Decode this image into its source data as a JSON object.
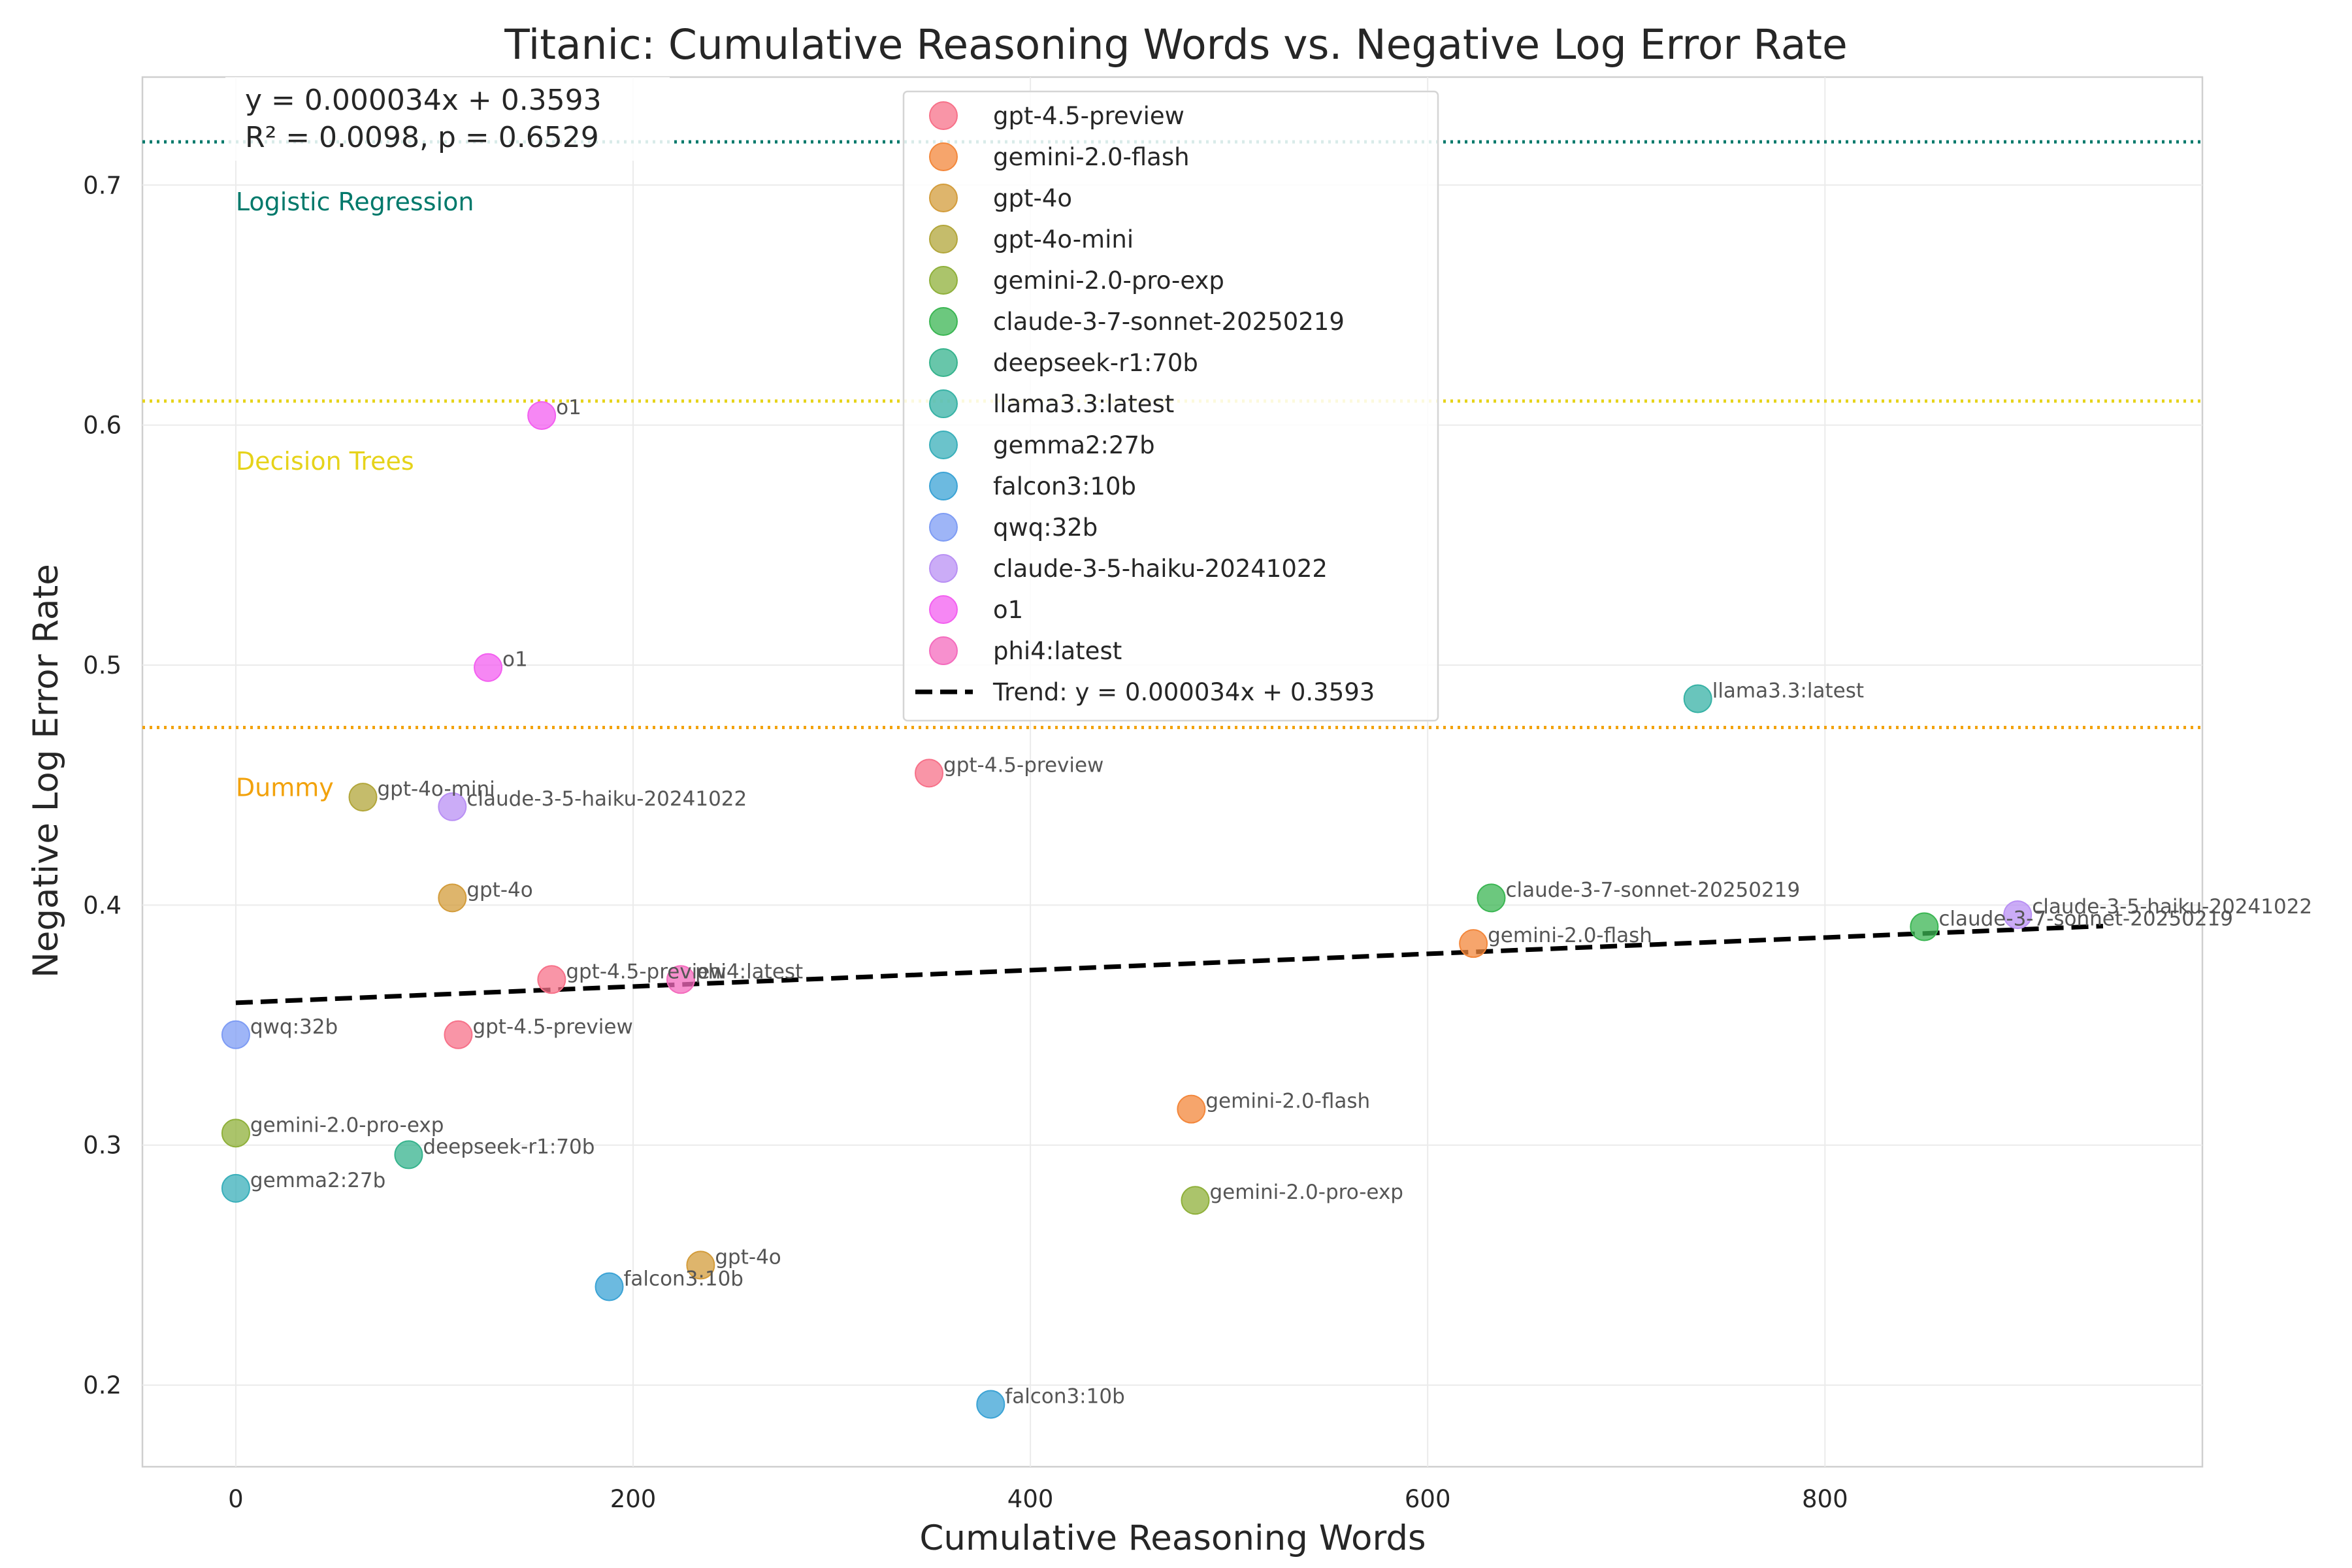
{
  "chart_data": {
    "type": "scatter",
    "title": "Titanic: Cumulative Reasoning Words vs. Negative Log Error Rate",
    "xlabel": "Cumulative Reasoning Words",
    "ylabel": "Negative Log Error Rate",
    "xlim": [
      -47,
      990
    ],
    "ylim": [
      0.166,
      0.745
    ],
    "xticks": [
      0,
      200,
      400,
      600,
      800
    ],
    "yticks": [
      0.2,
      0.3,
      0.4,
      0.5,
      0.6,
      0.7
    ],
    "grid": true,
    "legend_position": "upper-center",
    "series": [
      {
        "name": "gpt-4.5-preview",
        "color": "#f77189",
        "points": [
          {
            "x": 349,
            "y": 0.455,
            "label": "gpt-4.5-preview"
          },
          {
            "x": 159,
            "y": 0.369,
            "label": "gpt-4.5-preview"
          },
          {
            "x": 112,
            "y": 0.346,
            "label": "gpt-4.5-preview"
          }
        ]
      },
      {
        "name": "gemini-2.0-flash",
        "color": "#f3873b",
        "points": [
          {
            "x": 623,
            "y": 0.384,
            "label": "gemini-2.0-flash"
          },
          {
            "x": 481,
            "y": 0.315,
            "label": "gemini-2.0-flash"
          }
        ]
      },
      {
        "name": "gpt-4o",
        "color": "#d39c3b",
        "points": [
          {
            "x": 109,
            "y": 0.403,
            "label": "gpt-4o"
          },
          {
            "x": 234,
            "y": 0.25,
            "label": "gpt-4o"
          }
        ]
      },
      {
        "name": "gpt-4o-mini",
        "color": "#b2a63a",
        "points": [
          {
            "x": 64,
            "y": 0.445,
            "label": "gpt-4o-mini"
          }
        ]
      },
      {
        "name": "gemini-2.0-pro-exp",
        "color": "#8fb03a",
        "points": [
          {
            "x": 0,
            "y": 0.305,
            "label": "gemini-2.0-pro-exp"
          },
          {
            "x": 483,
            "y": 0.277,
            "label": "gemini-2.0-pro-exp"
          }
        ]
      },
      {
        "name": "claude-3-7-sonnet-20250219",
        "color": "#3bb653",
        "points": [
          {
            "x": 632,
            "y": 0.403,
            "label": "claude-3-7-sonnet-20250219"
          },
          {
            "x": 850,
            "y": 0.391,
            "label": "claude-3-7-sonnet-20250219"
          }
        ]
      },
      {
        "name": "deepseek-r1:70b",
        "color": "#36b38d",
        "points": [
          {
            "x": 87,
            "y": 0.296,
            "label": "deepseek-r1:70b"
          }
        ]
      },
      {
        "name": "llama3.3:latest",
        "color": "#37b2a5",
        "points": [
          {
            "x": 736,
            "y": 0.486,
            "label": "llama3.3:latest"
          }
        ]
      },
      {
        "name": "gemma2:27b",
        "color": "#39afba",
        "points": [
          {
            "x": 0,
            "y": 0.282,
            "label": "gemma2:27b"
          }
        ]
      },
      {
        "name": "falcon3:10b",
        "color": "#3ba3d5",
        "points": [
          {
            "x": 188,
            "y": 0.241,
            "label": "falcon3:10b"
          },
          {
            "x": 380,
            "y": 0.192,
            "label": "falcon3:10b"
          }
        ]
      },
      {
        "name": "qwq:32b",
        "color": "#7e9cf4",
        "points": [
          {
            "x": 0,
            "y": 0.346,
            "label": "qwq:32b"
          }
        ]
      },
      {
        "name": "claude-3-5-haiku-20241022",
        "color": "#b990f4",
        "points": [
          {
            "x": 109,
            "y": 0.441,
            "label": "claude-3-5-haiku-20241022"
          },
          {
            "x": 897,
            "y": 0.396,
            "label": "claude-3-5-haiku-20241022"
          }
        ]
      },
      {
        "name": "o1",
        "color": "#f35ff0",
        "points": [
          {
            "x": 154,
            "y": 0.604,
            "label": "o1"
          },
          {
            "x": 127,
            "y": 0.499,
            "label": "o1"
          }
        ]
      },
      {
        "name": "phi4:latest",
        "color": "#f46bbd",
        "points": [
          {
            "x": 224,
            "y": 0.369,
            "label": "phi4:latest"
          }
        ]
      }
    ],
    "trend": {
      "label": "Trend: y = 0.000034x + 0.3593",
      "slope": 3.4e-05,
      "intercept": 0.3593,
      "x_range": [
        0,
        940
      ],
      "color": "#000000"
    },
    "stats": {
      "equation": "y = 0.000034x + 0.3593",
      "r2_p": "R² = 0.0098, p = 0.6529"
    },
    "reference_lines": [
      {
        "label": "Logistic Regression",
        "y": 0.718,
        "color": "#00796b"
      },
      {
        "label": "Decision Trees",
        "y": 0.61,
        "color": "#e6d31a"
      },
      {
        "label": "Dummy",
        "y": 0.474,
        "color": "#f2a20c"
      }
    ]
  }
}
